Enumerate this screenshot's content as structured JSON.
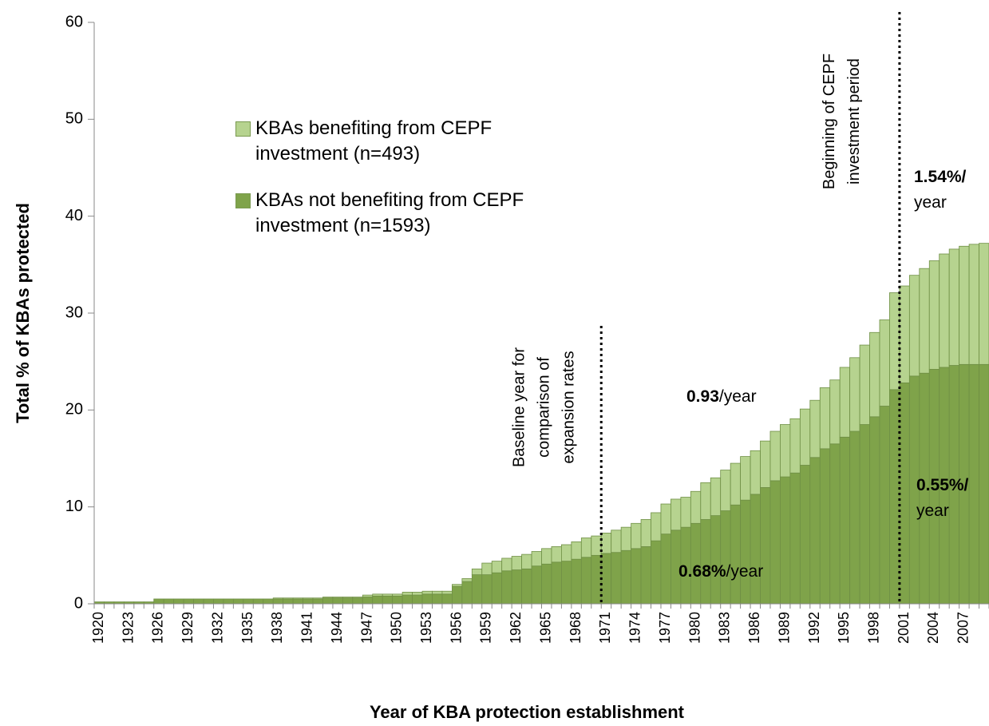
{
  "chart_data": {
    "type": "stacked_bar",
    "y_axis_label": "Total % of KBAs protected",
    "x_axis_label": "Year of KBA protection establishment",
    "categories": [
      "1920",
      null,
      null,
      "1923",
      null,
      null,
      "1926",
      null,
      null,
      "1929",
      null,
      null,
      "1932",
      null,
      null,
      "1935",
      null,
      null,
      "1938",
      null,
      null,
      "1941",
      null,
      null,
      "1944",
      null,
      null,
      "1947",
      null,
      null,
      "1950",
      null,
      null,
      "1953",
      null,
      null,
      "1956",
      null,
      null,
      "1959",
      null,
      null,
      "1962",
      null,
      null,
      "1965",
      null,
      null,
      "1968",
      null,
      null,
      "1971",
      null,
      null,
      "1974",
      null,
      null,
      "1977",
      null,
      null,
      "1980",
      null,
      null,
      "1983",
      null,
      null,
      "1986",
      null,
      null,
      "1989",
      null,
      null,
      "1992",
      null,
      null,
      "1995",
      null,
      null,
      "1998",
      null,
      null,
      "2001",
      null,
      null,
      "2004",
      null,
      null,
      "2007",
      null,
      null
    ],
    "series": [
      {
        "name": "KBAs not benefiting from CEPF investment (n=1593)",
        "color": "#7fa34a",
        "values": [
          0.2,
          0.2,
          0.2,
          0.2,
          0.2,
          0.2,
          0.5,
          0.5,
          0.5,
          0.5,
          0.5,
          0.5,
          0.5,
          0.5,
          0.5,
          0.5,
          0.5,
          0.5,
          0.5,
          0.5,
          0.5,
          0.5,
          0.5,
          0.6,
          0.6,
          0.6,
          0.6,
          0.7,
          0.8,
          0.8,
          0.8,
          0.9,
          0.9,
          1.0,
          1.0,
          1.0,
          1.8,
          2.3,
          3.0,
          3.0,
          3.2,
          3.4,
          3.5,
          3.6,
          3.9,
          4.1,
          4.3,
          4.4,
          4.6,
          4.8,
          5.0,
          5.2,
          5.3,
          5.5,
          5.7,
          5.9,
          6.5,
          7.2,
          7.6,
          7.9,
          8.3,
          8.7,
          9.1,
          9.6,
          10.2,
          10.7,
          11.3,
          12.0,
          12.7,
          13.1,
          13.5,
          14.3,
          15.1,
          16.0,
          16.5,
          17.2,
          17.8,
          18.5,
          19.3,
          20.4,
          22.1,
          22.8,
          23.5,
          23.8,
          24.2,
          24.4,
          24.6,
          24.7,
          24.7,
          24.7
        ]
      },
      {
        "name": "KBAs benefiting from CEPF investment (n=493)",
        "color": "#b6d38f",
        "values": [
          0,
          0,
          0,
          0,
          0,
          0,
          0,
          0,
          0,
          0,
          0,
          0,
          0,
          0,
          0,
          0,
          0,
          0,
          0.1,
          0.1,
          0.1,
          0.1,
          0.1,
          0.1,
          0.1,
          0.1,
          0.1,
          0.2,
          0.2,
          0.2,
          0.2,
          0.3,
          0.3,
          0.3,
          0.3,
          0.3,
          0.2,
          0.3,
          0.6,
          1.2,
          1.2,
          1.3,
          1.4,
          1.5,
          1.5,
          1.6,
          1.6,
          1.7,
          1.8,
          2.0,
          2.0,
          2.1,
          2.3,
          2.4,
          2.6,
          2.8,
          2.9,
          3.1,
          3.2,
          3.1,
          3.3,
          3.8,
          3.9,
          4.2,
          4.3,
          4.5,
          4.5,
          4.8,
          5.1,
          5.4,
          5.6,
          5.8,
          5.9,
          6.3,
          6.6,
          7.2,
          7.6,
          8.2,
          8.7,
          8.9,
          10.0,
          10.0,
          10.4,
          10.8,
          11.2,
          11.7,
          12.0,
          12.2,
          12.4,
          12.5
        ]
      }
    ],
    "ylim": [
      0,
      60
    ],
    "yticks": [
      0,
      10,
      20,
      30,
      40,
      50,
      60
    ],
    "reference_lines": [
      {
        "category": "1971",
        "label": [
          "Baseline year for",
          "comparison of",
          "expansion rates"
        ]
      },
      {
        "category": "2001",
        "label": [
          "Beginning of CEPF",
          "investment period"
        ]
      }
    ],
    "annotations": [
      {
        "bold": "0.93",
        "text": "/year"
      },
      {
        "bold": "1.54%/",
        "text": "year"
      },
      {
        "bold": "0.55%/",
        "text": "year"
      },
      {
        "bold": "0.68%",
        "text": "/year"
      }
    ]
  }
}
